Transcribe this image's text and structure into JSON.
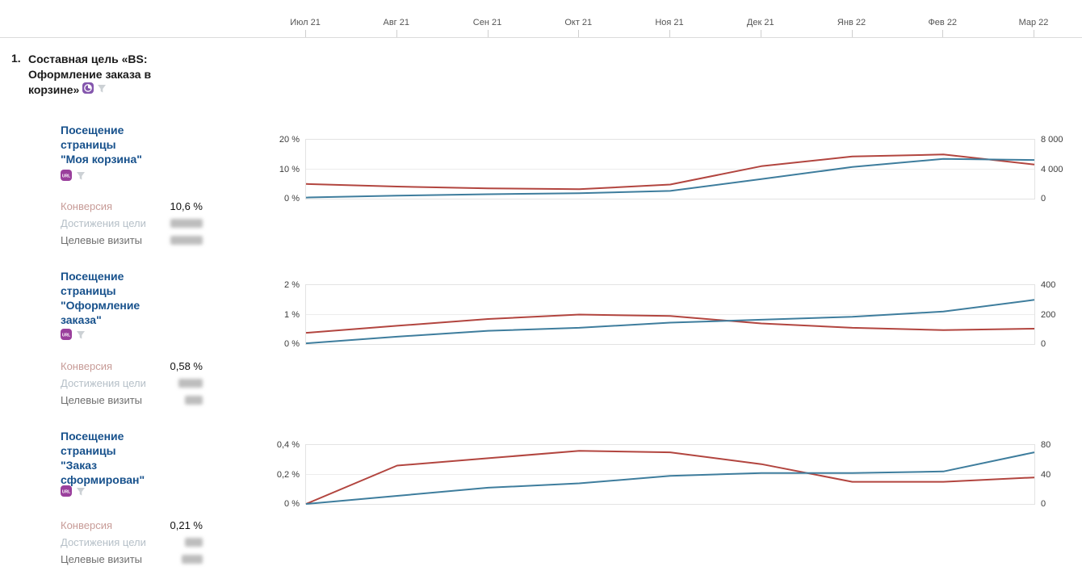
{
  "timeline": {
    "months": [
      "Июл 21",
      "Авг 21",
      "Сен 21",
      "Окт 21",
      "Ноя 21",
      "Дек 21",
      "Янв 22",
      "Фев 22",
      "Мар 22"
    ]
  },
  "goal": {
    "number": "1.",
    "title": "Составная цель «BS: Оформление заказа в корзине»",
    "title_lines": [
      "Составная цель «BS:",
      "Оформление заказа в",
      "корзине»"
    ]
  },
  "badges": {
    "url_label": "URL"
  },
  "colors": {
    "conversion_line": "#b2453f",
    "reaches_line": "#3e7d9d",
    "section_title": "#17518c",
    "conversion_label": "#c79b97",
    "reaches_label": "#b6c0c8",
    "visits_label": "#6f6f6f",
    "url_badge": "#9a3f9c",
    "goal_icon": "#8456ad"
  },
  "sections": [
    {
      "title_lines": [
        "Посещение",
        "страницы",
        "\"Моя корзина\""
      ],
      "metrics": [
        {
          "label": "Конверсия",
          "value": "10,6 %",
          "blurred": false
        },
        {
          "label": "Достижения цели",
          "value": null,
          "blurred": true
        },
        {
          "label": "Целевые визиты",
          "value": null,
          "blurred": true
        }
      ]
    },
    {
      "title_lines": [
        "Посещение",
        "страницы",
        "\"Оформление",
        "заказа\""
      ],
      "metrics": [
        {
          "label": "Конверсия",
          "value": "0,58 %",
          "blurred": false
        },
        {
          "label": "Достижения цели",
          "value": null,
          "blurred": true
        },
        {
          "label": "Целевые визиты",
          "value": null,
          "blurred": true
        }
      ]
    },
    {
      "title_lines": [
        "Посещение",
        "страницы",
        "\"Заказ",
        "сформирован\""
      ],
      "metrics": [
        {
          "label": "Конверсия",
          "value": "0,21 %",
          "blurred": false
        },
        {
          "label": "Достижения цели",
          "value": null,
          "blurred": true
        },
        {
          "label": "Целевые визиты",
          "value": null,
          "blurred": true
        }
      ]
    }
  ],
  "chart_data": [
    {
      "type": "line",
      "title": "Посещение страницы \"Моя корзина\"",
      "x": [
        "Июл 21",
        "Авг 21",
        "Сен 21",
        "Окт 21",
        "Ноя 21",
        "Дек 21",
        "Янв 22",
        "Фев 22",
        "Мар 22"
      ],
      "series": [
        {
          "name": "Конверсия",
          "axis": "left",
          "unit": "%",
          "color": "#b2453f",
          "values": [
            5.0,
            4.1,
            3.5,
            3.2,
            4.8,
            11.0,
            14.3,
            15.0,
            11.6
          ]
        },
        {
          "name": "Достижения цели",
          "axis": "right",
          "unit": "count",
          "color": "#3e7d9d",
          "values": [
            150,
            400,
            600,
            750,
            1050,
            2650,
            4300,
            5400,
            5250
          ]
        }
      ],
      "ylim_left": [
        0,
        20
      ],
      "ylim_right": [
        0,
        8000
      ],
      "yticks_left": [
        "20 %",
        "10 %",
        "0 %"
      ],
      "yticks_right": [
        "8 000",
        "4 000",
        "0"
      ],
      "grid": true,
      "legend": false
    },
    {
      "type": "line",
      "title": "Посещение страницы \"Оформление заказа\"",
      "x": [
        "Июл 21",
        "Авг 21",
        "Сен 21",
        "Окт 21",
        "Ноя 21",
        "Дек 21",
        "Янв 22",
        "Фев 22",
        "Мар 22"
      ],
      "series": [
        {
          "name": "Конверсия",
          "axis": "left",
          "unit": "%",
          "color": "#b2453f",
          "values": [
            0.38,
            0.62,
            0.85,
            1.0,
            0.95,
            0.7,
            0.55,
            0.47,
            0.52
          ]
        },
        {
          "name": "Достижения цели",
          "axis": "right",
          "unit": "count",
          "color": "#3e7d9d",
          "values": [
            5,
            50,
            90,
            110,
            145,
            165,
            185,
            220,
            300
          ]
        }
      ],
      "ylim_left": [
        0,
        2
      ],
      "ylim_right": [
        0,
        400
      ],
      "yticks_left": [
        "2 %",
        "1 %",
        "0 %"
      ],
      "yticks_right": [
        "400",
        "200",
        "0"
      ],
      "grid": true,
      "legend": false
    },
    {
      "type": "line",
      "title": "Посещение страницы \"Заказ сформирован\"",
      "x": [
        "Июл 21",
        "Авг 21",
        "Сен 21",
        "Окт 21",
        "Ноя 21",
        "Дек 21",
        "Янв 22",
        "Фев 22",
        "Мар 22"
      ],
      "series": [
        {
          "name": "Конверсия",
          "axis": "left",
          "unit": "%",
          "color": "#b2453f",
          "values": [
            0.0,
            0.26,
            0.31,
            0.36,
            0.35,
            0.27,
            0.15,
            0.15,
            0.18
          ]
        },
        {
          "name": "Достижения цели",
          "axis": "right",
          "unit": "count",
          "color": "#3e7d9d",
          "values": [
            0,
            11,
            22,
            28,
            38,
            42,
            42,
            44,
            70
          ]
        }
      ],
      "ylim_left": [
        0,
        0.4
      ],
      "ylim_right": [
        0,
        80
      ],
      "yticks_left": [
        "0,4 %",
        "0,2 %",
        "0 %"
      ],
      "yticks_right": [
        "80",
        "40",
        "0"
      ],
      "grid": true,
      "legend": false
    }
  ]
}
